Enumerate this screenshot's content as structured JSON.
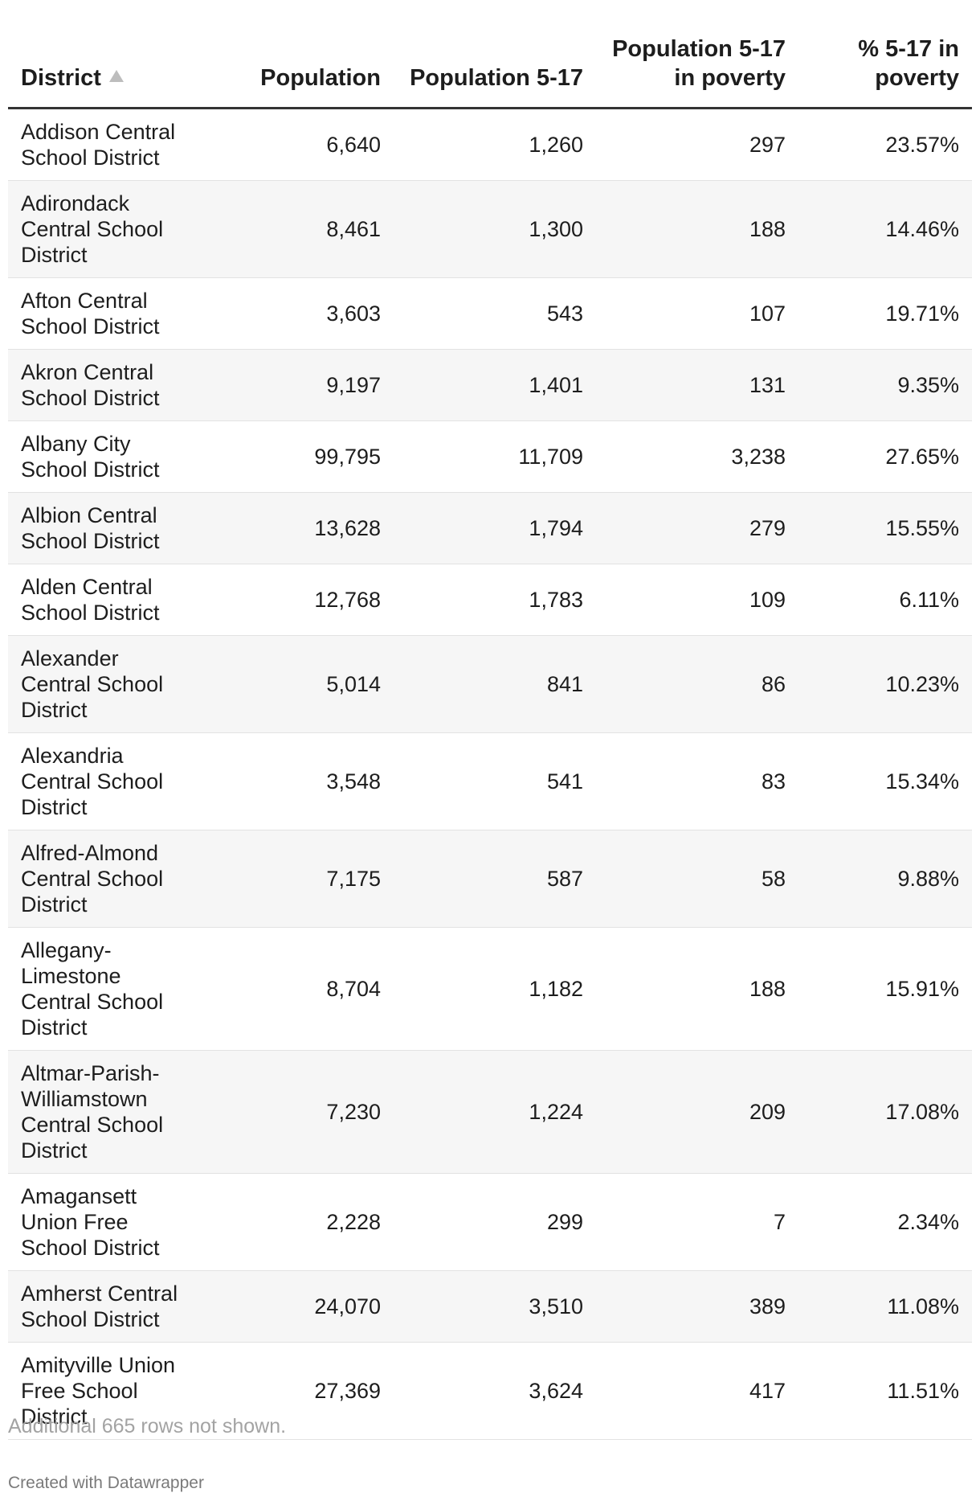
{
  "chart_data": {
    "type": "table",
    "columns": [
      {
        "label": "District",
        "sorted": "ascending"
      },
      {
        "label": "Population"
      },
      {
        "label": "Population 5-17"
      },
      {
        "label": "Population 5-17 in poverty"
      },
      {
        "label": "% 5-17 in poverty"
      }
    ],
    "rows": [
      [
        "Addison Central School District",
        "6,640",
        "1,260",
        "297",
        "23.57%"
      ],
      [
        "Adirondack Central School District",
        "8,461",
        "1,300",
        "188",
        "14.46%"
      ],
      [
        "Afton Central School District",
        "3,603",
        "543",
        "107",
        "19.71%"
      ],
      [
        "Akron Central School District",
        "9,197",
        "1,401",
        "131",
        "9.35%"
      ],
      [
        "Albany City School District",
        "99,795",
        "11,709",
        "3,238",
        "27.65%"
      ],
      [
        "Albion Central School District",
        "13,628",
        "1,794",
        "279",
        "15.55%"
      ],
      [
        "Alden Central School District",
        "12,768",
        "1,783",
        "109",
        "6.11%"
      ],
      [
        "Alexander Central School District",
        "5,014",
        "841",
        "86",
        "10.23%"
      ],
      [
        "Alexandria Central School District",
        "3,548",
        "541",
        "83",
        "15.34%"
      ],
      [
        "Alfred-Almond Central School District",
        "7,175",
        "587",
        "58",
        "9.88%"
      ],
      [
        "Allegany-Limestone Central School District",
        "8,704",
        "1,182",
        "188",
        "15.91%"
      ],
      [
        "Altmar-Parish-Williamstown Central School District",
        "7,230",
        "1,224",
        "209",
        "17.08%"
      ],
      [
        "Amagansett Union Free School District",
        "2,228",
        "299",
        "7",
        "2.34%"
      ],
      [
        "Amherst Central School District",
        "24,070",
        "3,510",
        "389",
        "11.08%"
      ],
      [
        "Amityville Union Free School District",
        "27,369",
        "3,624",
        "417",
        "11.51%"
      ]
    ],
    "notes": "Additional 665 rows not shown.",
    "credit": "Created with Datawrapper"
  }
}
